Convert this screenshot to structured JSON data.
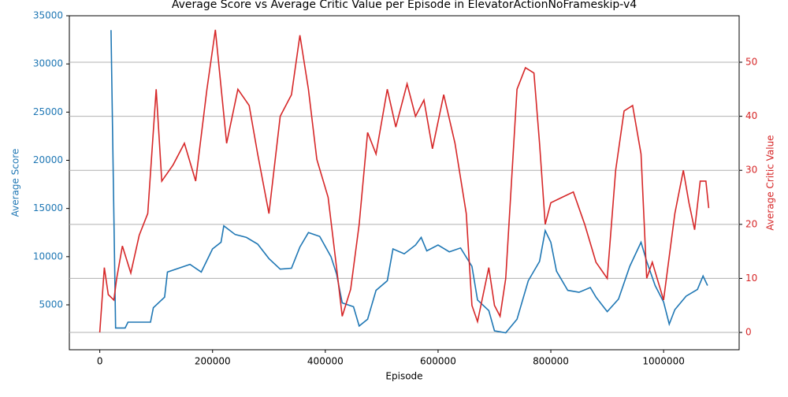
{
  "chart_data": {
    "type": "line",
    "title": "Average Score vs Average Critic Value per Episode in ElevatorActionNoFrameskip-v4",
    "x_label": "Episode",
    "y_label": "Average Score",
    "y2_label": "Average Critic Value",
    "xlim": [
      -54000,
      1134000
    ],
    "xticks": [
      0,
      200000,
      400000,
      600000,
      800000,
      1000000
    ],
    "ylim": [
      340,
      35000
    ],
    "yticks": [
      5000,
      10000,
      15000,
      20000,
      25000,
      30000,
      35000
    ],
    "y2lim": [
      -3.2,
      58.6
    ],
    "y2ticks": [
      0,
      10,
      20,
      30,
      40,
      50
    ],
    "grid": "y2",
    "series": [
      {
        "name": "Average Score",
        "color": "#1f77b4",
        "axis": "y",
        "x": [
          20000,
          28000,
          45000,
          50000,
          90000,
          95000,
          115000,
          120000,
          160000,
          180000,
          200000,
          215000,
          220000,
          240000,
          260000,
          280000,
          300000,
          320000,
          340000,
          355000,
          370000,
          390000,
          410000,
          420000,
          430000,
          440000,
          450000,
          460000,
          475000,
          490000,
          510000,
          520000,
          540000,
          560000,
          570000,
          580000,
          600000,
          620000,
          640000,
          660000,
          670000,
          690000,
          700000,
          720000,
          740000,
          760000,
          780000,
          790000,
          800000,
          810000,
          830000,
          850000,
          870000,
          880000,
          900000,
          920000,
          940000,
          960000,
          970000,
          985000,
          1000000,
          1010000,
          1020000,
          1040000,
          1060000,
          1070000,
          1078000
        ],
        "values": [
          33500,
          2600,
          2600,
          3200,
          3200,
          4700,
          5800,
          8400,
          9200,
          8400,
          10800,
          11500,
          13200,
          12300,
          12000,
          11300,
          9800,
          8700,
          8800,
          11000,
          12500,
          12100,
          10000,
          8200,
          5200,
          5000,
          4800,
          2800,
          3500,
          6500,
          7500,
          10800,
          10300,
          11200,
          12000,
          10600,
          11200,
          10500,
          10900,
          9000,
          5500,
          4400,
          2300,
          2100,
          3500,
          7500,
          9500,
          12700,
          11500,
          8500,
          6500,
          6300,
          6800,
          5800,
          4300,
          5600,
          9000,
          11500,
          9500,
          7000,
          5300,
          3000,
          4500,
          5900,
          6600,
          8000,
          7000
        ]
      },
      {
        "name": "Average Critic Value",
        "color": "#d62728",
        "axis": "y2",
        "x": [
          0,
          8000,
          15000,
          25000,
          30000,
          40000,
          55000,
          70000,
          85000,
          100000,
          110000,
          130000,
          150000,
          170000,
          190000,
          205000,
          225000,
          245000,
          265000,
          280000,
          300000,
          320000,
          340000,
          355000,
          370000,
          385000,
          405000,
          420000,
          430000,
          445000,
          460000,
          475000,
          490000,
          510000,
          525000,
          545000,
          560000,
          575000,
          590000,
          610000,
          630000,
          650000,
          660000,
          670000,
          690000,
          700000,
          710000,
          720000,
          740000,
          755000,
          770000,
          780000,
          790000,
          800000,
          820000,
          840000,
          860000,
          880000,
          900000,
          915000,
          930000,
          945000,
          960000,
          970000,
          980000,
          1000000,
          1020000,
          1035000,
          1045000,
          1055000,
          1065000,
          1075000,
          1080000
        ],
        "values": [
          0,
          12,
          7,
          6,
          10,
          16,
          11,
          18,
          22,
          45,
          28,
          31,
          35,
          28,
          45,
          56,
          35,
          45,
          42,
          33,
          22,
          40,
          44,
          55,
          45,
          32,
          25,
          12,
          3,
          8,
          20,
          37,
          33,
          45,
          38,
          46,
          40,
          43,
          34,
          44,
          35,
          22,
          5,
          2,
          12,
          5,
          3,
          10,
          45,
          49,
          48,
          35,
          20,
          24,
          25,
          26,
          20,
          13,
          10,
          30,
          41,
          42,
          33,
          10,
          13,
          6,
          22,
          30,
          24,
          19,
          28,
          28,
          23
        ]
      }
    ]
  }
}
